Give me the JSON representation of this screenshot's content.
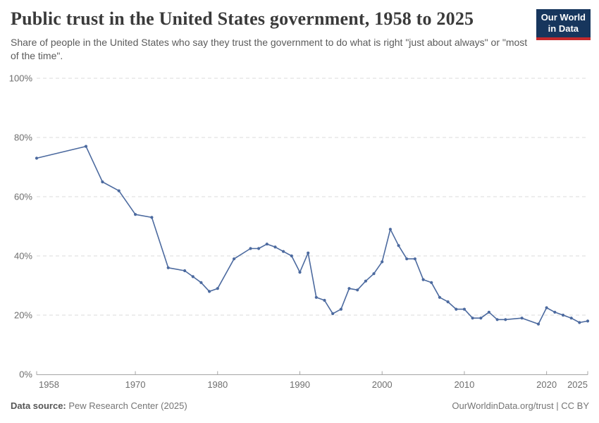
{
  "header": {
    "logo": {
      "line1": "Our World",
      "line2": "in Data",
      "bg_color": "#17365d",
      "stripe_color": "#c42a2c"
    }
  },
  "footer": {
    "source_label": "Data source:",
    "source_value": " Pew Research Center (2025)",
    "url": "OurWorldinData.org/trust",
    "separator": " | ",
    "license": "CC BY"
  },
  "chart_data": {
    "type": "line",
    "title": "Public trust in the United States government, 1958 to 2025",
    "subtitle": "Share of people in the United States who say they trust the government to do what is right \"just about always\" or \"most of the time\".",
    "xlabel": "",
    "ylabel": "",
    "xlim": [
      1958,
      2025
    ],
    "ylim": [
      0,
      100
    ],
    "x_ticks": [
      1958,
      1970,
      1980,
      1990,
      2000,
      2010,
      2020,
      2025
    ],
    "y_ticks": [
      0,
      20,
      40,
      60,
      80,
      100
    ],
    "y_tick_suffix": "%",
    "grid": "horizontal-dashed",
    "legend": "none",
    "line_color": "#4c6a9f",
    "grid_color": "#dbdbdb",
    "axis_color": "#a5a5a5",
    "tick_label_color": "#6e6e6e",
    "series": [
      {
        "name": "United States",
        "points": [
          [
            1958,
            73
          ],
          [
            1964,
            77
          ],
          [
            1966,
            65
          ],
          [
            1968,
            62
          ],
          [
            1970,
            54
          ],
          [
            1972,
            53
          ],
          [
            1974,
            36
          ],
          [
            1976,
            35
          ],
          [
            1977,
            33
          ],
          [
            1978,
            31
          ],
          [
            1979,
            28
          ],
          [
            1980,
            29
          ],
          [
            1982,
            39
          ],
          [
            1984,
            42.5
          ],
          [
            1985,
            42.5
          ],
          [
            1986,
            44
          ],
          [
            1987,
            43
          ],
          [
            1988,
            41.5
          ],
          [
            1989,
            40
          ],
          [
            1990,
            34.5
          ],
          [
            1991,
            41
          ],
          [
            1992,
            26
          ],
          [
            1993,
            25
          ],
          [
            1994,
            20.5
          ],
          [
            1995,
            22
          ],
          [
            1996,
            29
          ],
          [
            1997,
            28.5
          ],
          [
            1998,
            31.5
          ],
          [
            1999,
            34
          ],
          [
            2000,
            38
          ],
          [
            2001,
            49
          ],
          [
            2002,
            43.5
          ],
          [
            2003,
            39
          ],
          [
            2004,
            39
          ],
          [
            2005,
            32
          ],
          [
            2006,
            31
          ],
          [
            2007,
            26
          ],
          [
            2008,
            24.5
          ],
          [
            2009,
            22
          ],
          [
            2010,
            22
          ],
          [
            2011,
            19
          ],
          [
            2012,
            19
          ],
          [
            2013,
            21
          ],
          [
            2014,
            18.5
          ],
          [
            2015,
            18.5
          ],
          [
            2017,
            19
          ],
          [
            2019,
            17
          ],
          [
            2020,
            22.5
          ],
          [
            2021,
            21
          ],
          [
            2022,
            20
          ],
          [
            2023,
            19
          ],
          [
            2024,
            17.5
          ],
          [
            2025,
            18
          ]
        ]
      }
    ]
  }
}
